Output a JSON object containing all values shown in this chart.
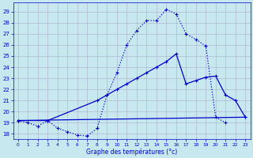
{
  "xlabel": "Graphe des températures (°c)",
  "bg_color": "#c8e8f0",
  "grid_color": "#b0b8d0",
  "line_color": "#0000cc",
  "xlim": [
    -0.5,
    23.5
  ],
  "ylim": [
    17.5,
    29.8
  ],
  "yticks": [
    18,
    19,
    20,
    21,
    22,
    23,
    24,
    25,
    26,
    27,
    28,
    29
  ],
  "xticks": [
    0,
    1,
    2,
    3,
    4,
    5,
    6,
    7,
    8,
    9,
    10,
    11,
    12,
    13,
    14,
    15,
    16,
    17,
    18,
    19,
    20,
    21,
    22,
    23
  ],
  "line1_x": [
    0,
    1,
    2,
    3,
    4,
    5,
    6,
    7,
    8,
    9,
    10,
    11,
    12,
    13,
    14,
    15,
    16,
    17,
    18,
    19,
    20,
    21
  ],
  "line1_y": [
    19.2,
    19.0,
    18.7,
    19.2,
    18.5,
    18.2,
    17.9,
    17.8,
    18.5,
    21.5,
    23.5,
    26.0,
    27.3,
    28.2,
    28.2,
    29.2,
    28.8,
    27.0,
    26.5,
    25.9,
    19.5,
    19.0
  ],
  "line2_x": [
    0,
    3,
    8,
    9,
    10,
    11,
    12,
    13,
    14,
    15,
    16,
    17,
    18,
    19,
    20,
    21,
    22,
    23
  ],
  "line2_y": [
    19.2,
    19.2,
    21.0,
    21.5,
    22.0,
    22.5,
    23.0,
    23.5,
    24.0,
    24.5,
    25.2,
    22.5,
    22.8,
    23.1,
    23.2,
    21.5,
    21.0,
    19.5
  ],
  "line3_x": [
    0,
    23
  ],
  "line3_y": [
    19.2,
    19.5
  ]
}
